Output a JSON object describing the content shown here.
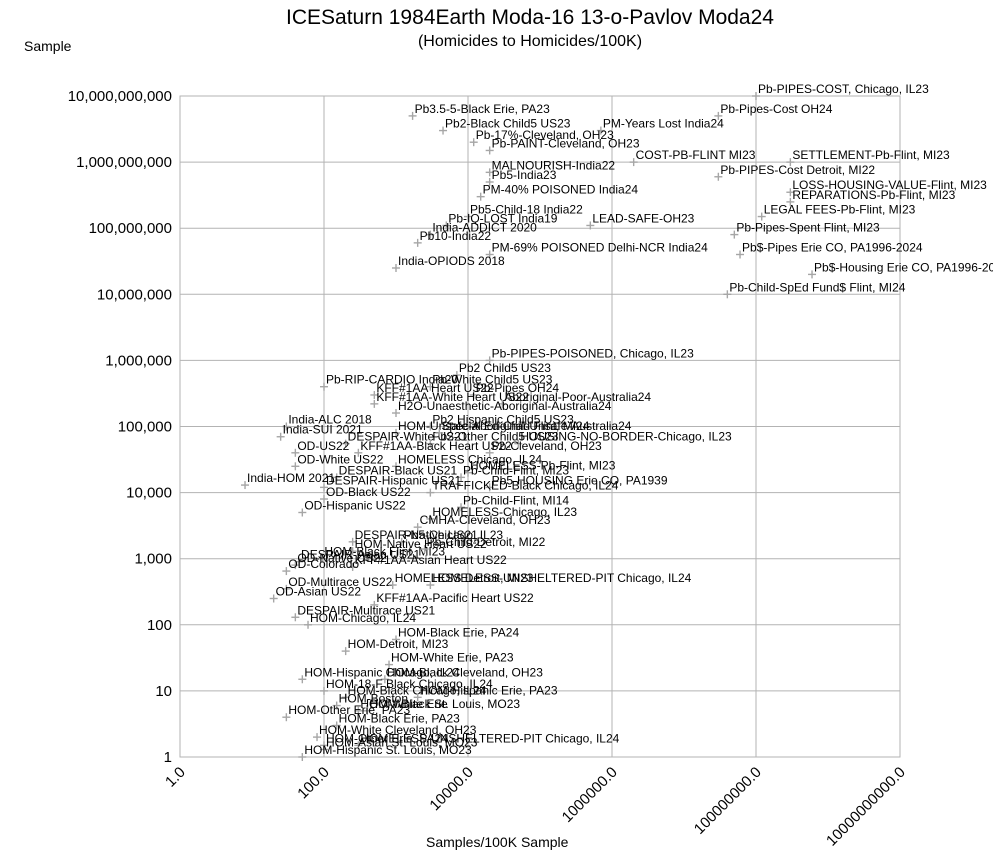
{
  "chart_data": {
    "type": "scatter",
    "title": "ICESaturn 1984Earth Moda-16 13-o-Pavlov Moda24",
    "subtitle": "(Homicides to Homicides/100K)",
    "xlabel": "Samples/100K Sample",
    "ylabel": "Sample",
    "x_scale": "log",
    "y_scale": "log",
    "xlim": [
      1,
      10000000000
    ],
    "ylim": [
      1,
      10000000000
    ],
    "grid": true,
    "legend": "none",
    "x_ticks": [
      "1.0",
      "100.0",
      "10000.0",
      "1000000.0",
      "100000000.0",
      "10000000000.0"
    ],
    "y_ticks": [
      "1",
      "10",
      "100",
      "1,000",
      "10,000",
      "100,000",
      "1,000,000",
      "10,000,000",
      "100,000,000",
      "1,000,000,000",
      "10,000,000,000"
    ],
    "marker_color": "#a6a6a6",
    "label_color": "#000000",
    "points": [
      {
        "label": "HOM-Black Flint, MI23",
        "x": 95,
        "y": 1000
      },
      {
        "label": "Pb3.5-5-Black Erie, PA23",
        "x": 1700,
        "y": 5000000000
      },
      {
        "label": "Pb2-Black Child5 US23",
        "x": 4500,
        "y": 3000000000
      },
      {
        "label": "PM-Years Lost India24",
        "x": 700000,
        "y": 3000000000
      },
      {
        "label": "Pb-PIPES-COST, Chicago, IL23",
        "x": 100000000,
        "y": 10000000000
      },
      {
        "label": "Pb-Pipes-Cost OH24",
        "x": 30000000,
        "y": 5000000000
      },
      {
        "label": "Pb-17%-Cleveland, OH23",
        "x": 12000,
        "y": 2000000000
      },
      {
        "label": "Pb-PAINT-Cleveland, OH23",
        "x": 20000,
        "y": 1500000000
      },
      {
        "label": "COST-PB-FLINT MI23",
        "x": 2000000,
        "y": 1000000000
      },
      {
        "label": "SETTLEMENT-Pb-Flint, MI23",
        "x": 300000000,
        "y": 1000000000
      },
      {
        "label": "MALNOURISH-India22",
        "x": 20000,
        "y": 700000000
      },
      {
        "label": "Pb-PIPES-Cost Detroit, MI22",
        "x": 30000000,
        "y": 600000000
      },
      {
        "label": "Pb5-India23",
        "x": 20000,
        "y": 500000000
      },
      {
        "label": "LOSS-HOUSING-VALUE-Flint, MI23",
        "x": 300000000,
        "y": 350000000
      },
      {
        "label": "PM-40% POISONED India24",
        "x": 15000,
        "y": 300000000
      },
      {
        "label": "REPARATIONS-Pb-Flint, MI23",
        "x": 300000000,
        "y": 250000000
      },
      {
        "label": "LEGAL FEES-Pb-Flint, MI23",
        "x": 120000000,
        "y": 150000000
      },
      {
        "label": "Pb5-Child-18 India22",
        "x": 10000,
        "y": 150000000
      },
      {
        "label": "Pb-IQ-LOST India19",
        "x": 5000,
        "y": 110000000
      },
      {
        "label": "LEAD-SAFE-OH23",
        "x": 500000,
        "y": 110000000
      },
      {
        "label": "India-ADDICT 2020",
        "x": 3000,
        "y": 80000000
      },
      {
        "label": "Pb-Pipes-Spent Flint, MI23",
        "x": 50000000,
        "y": 80000000
      },
      {
        "label": "Pb10-India22",
        "x": 2000,
        "y": 60000000
      },
      {
        "label": "Pb$-Pipes Erie CO, PA1996-2024",
        "x": 60000000,
        "y": 40000000
      },
      {
        "label": "PM-69% POISONED Delhi-NCR India24",
        "x": 20000,
        "y": 40000000
      },
      {
        "label": "India-OPIODS 2018",
        "x": 1000,
        "y": 25000000
      },
      {
        "label": "Pb$-Housing Erie CO, PA1996-2024",
        "x": 600000000,
        "y": 20000000
      },
      {
        "label": "Pb-Child-SpEd Fund$ Flint, MI24",
        "x": 40000000,
        "y": 10000000
      },
      {
        "label": "Pb-PIPES-POISONED, Chicago, IL23",
        "x": 20000,
        "y": 1000000
      },
      {
        "label": "Pb2 Child5 US23",
        "x": 7000,
        "y": 600000
      },
      {
        "label": "Pb-RIP-CARDIO India20",
        "x": 100,
        "y": 400000
      },
      {
        "label": "Pb-White Child5 US23",
        "x": 3000,
        "y": 400000
      },
      {
        "label": "KFF#1AA Heart US22",
        "x": 500,
        "y": 300000
      },
      {
        "label": "Pb-Pipes OH24",
        "x": 12000,
        "y": 300000
      },
      {
        "label": "KFF#1AA-White Heart US22",
        "x": 500,
        "y": 220000
      },
      {
        "label": "Aboriginal-Poor-Australia24",
        "x": 30000,
        "y": 220000
      },
      {
        "label": "H2O-Unaesthetic-Aboriginal-Australia24",
        "x": 1000,
        "y": 160000
      },
      {
        "label": "Pb2 Hispanic Child5 US23",
        "x": 3000,
        "y": 100000
      },
      {
        "label": "India-ALC 2018",
        "x": 30,
        "y": 100000
      },
      {
        "label": "HOM-Unsafe-Aboriginal-Unsafe-Australia24",
        "x": 1000,
        "y": 80000
      },
      {
        "label": "India-SUI 2021",
        "x": 25,
        "y": 70000
      },
      {
        "label": "DESPAIR-White US21",
        "x": 200,
        "y": 55000
      },
      {
        "label": "Pb2-Other Child5 US23",
        "x": 3000,
        "y": 55000
      },
      {
        "label": "HOUSING-NO-BORDER-Chicago, IL23",
        "x": 50000,
        "y": 55000
      },
      {
        "label": "OD-US22",
        "x": 40,
        "y": 40000
      },
      {
        "label": "KFF#1AA-Black Heart US22",
        "x": 300,
        "y": 40000
      },
      {
        "label": "Pb-Cleveland, OH23",
        "x": 20000,
        "y": 40000
      },
      {
        "label": "OD-White US22",
        "x": 40,
        "y": 25000
      },
      {
        "label": "HOMELESS Chicago, IL24",
        "x": 1000,
        "y": 25000
      },
      {
        "label": "HOMELESS-Pb-Flint, MI23",
        "x": 10000,
        "y": 20000
      },
      {
        "label": "DESPAIR-Black US21",
        "x": 150,
        "y": 17000
      },
      {
        "label": "Pb-Child-Flint, MI23",
        "x": 8000,
        "y": 17000
      },
      {
        "label": "India-HOM 2021",
        "x": 8,
        "y": 13000
      },
      {
        "label": "DESPAIR-Hispanic US21",
        "x": 100,
        "y": 12000
      },
      {
        "label": "Pb5-HOUSING Erie CO, PA1939",
        "x": 20000,
        "y": 12000
      },
      {
        "label": "TRAFFICKED-Black Chicago, IL24",
        "x": 3000,
        "y": 10000
      },
      {
        "label": "OD-Black US22",
        "x": 100,
        "y": 8000
      },
      {
        "label": "OD-Hispanic US22",
        "x": 50,
        "y": 5000
      },
      {
        "label": "Pb-Child-Flint, MI14",
        "x": 8000,
        "y": 6000
      },
      {
        "label": "HOMELESS-Chicago, IL23",
        "x": 3000,
        "y": 4000
      },
      {
        "label": "CMHA-Cleveland, OH23",
        "x": 2000,
        "y": 3000
      },
      {
        "label": "DESPAIR-Native US21",
        "x": 250,
        "y": 1800
      },
      {
        "label": "Pb5-Chicago, IL23",
        "x": 1200,
        "y": 1800
      },
      {
        "label": "Pb-Child-Detroit, MI22",
        "x": 2500,
        "y": 1400
      },
      {
        "label": "HOM-Native Heart US22",
        "x": 250,
        "y": 1300
      },
      {
        "label": "DESPAIR-Asian US21",
        "x": 45,
        "y": 900
      },
      {
        "label": "OD-Native US22",
        "x": 40,
        "y": 800
      },
      {
        "label": "KFF#1AA-Asian Heart US22",
        "x": 250,
        "y": 750
      },
      {
        "label": "OD-Colorado",
        "x": 30,
        "y": 650
      },
      {
        "label": "OD-Multirace US22",
        "x": 30,
        "y": 350
      },
      {
        "label": "HOMELESS Detroit, MI23",
        "x": 900,
        "y": 400
      },
      {
        "label": "HOMELESS-UNSHELTERED-PIT Chicago, IL24",
        "x": 3000,
        "y": 400
      },
      {
        "label": "OD-Asian US22",
        "x": 20,
        "y": 250
      },
      {
        "label": "KFF#1AA-Pacific Heart US22",
        "x": 500,
        "y": 200
      },
      {
        "label": "DESPAIR-Multirace US21",
        "x": 40,
        "y": 130
      },
      {
        "label": "HOM-Chicago, IL24",
        "x": 60,
        "y": 100
      },
      {
        "label": "Special Ed-Child Flint, MI24",
        "x": 4000,
        "y": 80000
      },
      {
        "label": "HOM-Black Erie, PA24",
        "x": 1000,
        "y": 60
      },
      {
        "label": "HOM-Detroit, MI23",
        "x": 200,
        "y": 40
      },
      {
        "label": "HOM-White Erie, PA23",
        "x": 800,
        "y": 25
      },
      {
        "label": "HOM-Hispanic Chicago, IL24",
        "x": 50,
        "y": 15
      },
      {
        "label": "HOM-Black Cleveland, OH23",
        "x": 700,
        "y": 15
      },
      {
        "label": "HOM-18-F Black Chicago, IL24",
        "x": 100,
        "y": 10
      },
      {
        "label": "HOM-Black Chicago, IL24",
        "x": 200,
        "y": 8
      },
      {
        "label": "HOM-Hispanic Erie, PA23",
        "x": 2000,
        "y": 8
      },
      {
        "label": "HOM-Boston",
        "x": 150,
        "y": 6
      },
      {
        "label": "HOM-White Erie",
        "x": 300,
        "y": 5
      },
      {
        "label": "HOM-Black St. Louis, MO23",
        "x": 400,
        "y": 5
      },
      {
        "label": "HOM-Other Erie, PA23",
        "x": 30,
        "y": 4
      },
      {
        "label": "HOM-Black Erie, PA23",
        "x": 150,
        "y": 3
      },
      {
        "label": "HOM-White Cleveland, OH23",
        "x": 80,
        "y": 2
      },
      {
        "label": "HOM-Other Erie, PA24",
        "x": 100,
        "y": 1.5
      },
      {
        "label": "HOMELESS-UNSHELTERED-PIT Chicago, IL24",
        "x": 300,
        "y": 1.5
      },
      {
        "label": "HOM-Asian St. Louis, MO23",
        "x": 100,
        "y": 1.3
      },
      {
        "label": "HOM-Hispanic St. Louis, MO23",
        "x": 50,
        "y": 1
      }
    ]
  }
}
